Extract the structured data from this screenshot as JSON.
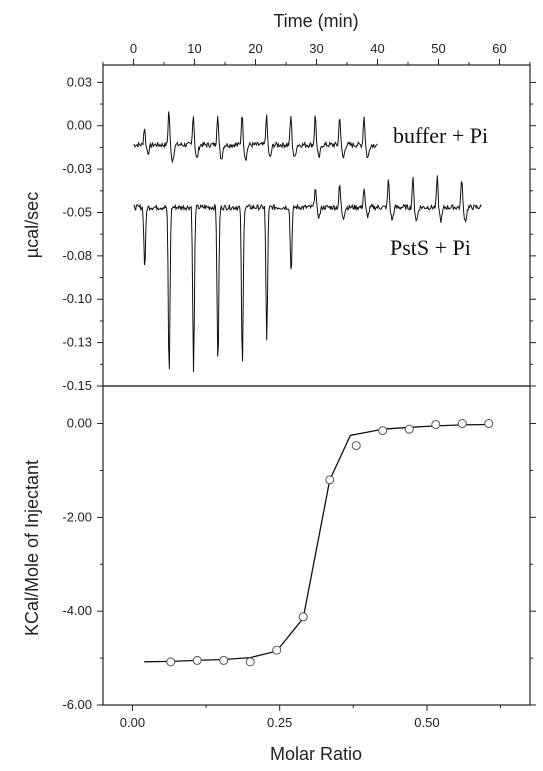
{
  "chart_data": [
    {
      "type": "line",
      "xlabel": "Time (min)",
      "ylabel": "µcal/sec",
      "xlim": [
        -5,
        65
      ],
      "ylim": [
        -0.15,
        0.035
      ],
      "xticks": [
        0,
        10,
        20,
        30,
        40,
        50,
        60
      ],
      "xtick_labels": [
        "0",
        "10",
        "20",
        "30",
        "40",
        "50",
        "60"
      ],
      "yticks": [
        0.025,
        0.0,
        -0.025,
        -0.05,
        -0.075,
        -0.1,
        -0.125,
        -0.15
      ],
      "ytick_labels": [
        "0.03",
        "0.00",
        "-0.03",
        "-0.05",
        "-0.08",
        "-0.10",
        "-0.13",
        "-0.15"
      ],
      "grid": false,
      "annotations": [
        "buffer + Pi",
        "PstS + Pi"
      ],
      "series": [
        {
          "baseline": -0.011,
          "duration": [
            0,
            40
          ],
          "injection_times": [
            1.5,
            5.5,
            9.5,
            13.5,
            17.5,
            21.5,
            25.5,
            29.5,
            33.5,
            37.5
          ],
          "peak_values": [
            -0.001,
            0.009,
            0.007,
            0.007,
            0.007,
            0.006,
            0.006,
            0.006,
            0.006,
            0.006
          ]
        },
        {
          "baseline": -0.047,
          "duration": [
            0,
            57
          ],
          "injection_times": [
            1.5,
            5.5,
            9.5,
            13.5,
            17.5,
            21.5,
            25.5,
            29.5,
            33.5,
            37.5,
            41.5,
            45.5,
            49.5,
            53.5
          ],
          "peak_values": [
            -0.082,
            -0.145,
            -0.142,
            -0.14,
            -0.14,
            -0.124,
            -0.085,
            -0.035,
            -0.034,
            -0.036,
            -0.031,
            -0.03,
            -0.03,
            -0.03
          ]
        }
      ]
    },
    {
      "type": "scatter",
      "xlabel": "Molar Ratio",
      "ylabel": "KCal/Mole of Injectant",
      "xlim": [
        -0.05,
        0.675
      ],
      "ylim": [
        -6.0,
        0.8
      ],
      "xticks": [
        0.0,
        0.25,
        0.5
      ],
      "xtick_labels": [
        "0.00",
        "0.25",
        "0.50"
      ],
      "yticks": [
        0.0,
        -2.0,
        -4.0,
        -6.0
      ],
      "ytick_labels": [
        "0.00",
        "-2.00",
        "-4.00",
        "-6.00"
      ],
      "grid": false,
      "points": {
        "x": [
          0.065,
          0.11,
          0.155,
          0.2,
          0.245,
          0.29,
          0.335,
          0.38,
          0.425,
          0.47,
          0.515,
          0.56,
          0.605
        ],
        "y": [
          -5.08,
          -5.05,
          -5.05,
          -5.08,
          -4.83,
          -4.12,
          -1.2,
          -0.47,
          -0.15,
          -0.12,
          -0.02,
          0.0,
          0.0
        ]
      },
      "fit": {
        "x": [
          0.02,
          0.065,
          0.11,
          0.155,
          0.2,
          0.245,
          0.29,
          0.335,
          0.37,
          0.425,
          0.47,
          0.515,
          0.56,
          0.605
        ],
        "y": [
          -5.08,
          -5.07,
          -5.05,
          -5.03,
          -4.99,
          -4.85,
          -4.15,
          -1.2,
          -0.25,
          -0.12,
          -0.08,
          -0.05,
          -0.03,
          -0.02
        ]
      }
    }
  ]
}
